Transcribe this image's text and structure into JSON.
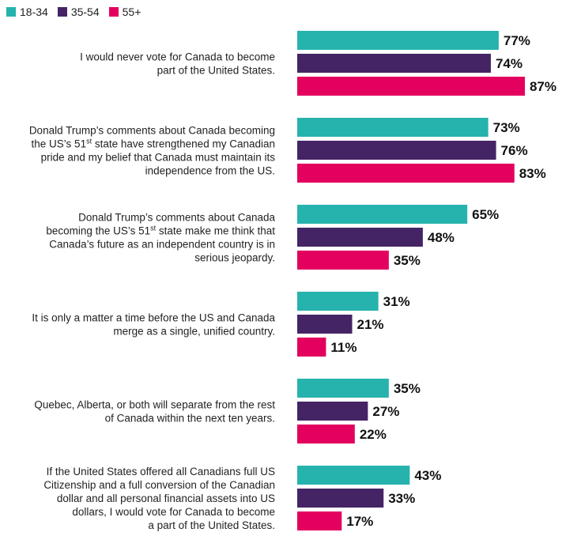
{
  "colors": {
    "18-34": "#26b3ad",
    "35-54": "#452465",
    "55+": "#e3005f"
  },
  "chart_data": {
    "type": "bar",
    "orientation": "horizontal",
    "value_suffix": "%",
    "xlim": [
      0,
      100
    ],
    "grid": false,
    "legend_position": "top-left",
    "series": [
      {
        "name": "18-34",
        "values": [
          77,
          73,
          65,
          31,
          35,
          43
        ]
      },
      {
        "name": "35-54",
        "values": [
          74,
          76,
          48,
          21,
          27,
          33
        ]
      },
      {
        "name": "55+",
        "values": [
          87,
          83,
          35,
          11,
          22,
          17
        ]
      }
    ],
    "categories": [
      {
        "lines": [
          [
            {
              "t": "I would never vote for Canada to become"
            }
          ],
          [
            {
              "t": "part of the United States."
            }
          ]
        ]
      },
      {
        "lines": [
          [
            {
              "t": "Donald Trump’s comments about Canada becoming"
            }
          ],
          [
            {
              "t": "the US’s 51"
            },
            {
              "t": "st",
              "sup": true
            },
            {
              "t": " state have strengthened my Canadian"
            }
          ],
          [
            {
              "t": "pride and my belief that Canada must maintain its"
            }
          ],
          [
            {
              "t": "independence from the US."
            }
          ]
        ]
      },
      {
        "lines": [
          [
            {
              "t": "Donald Trump’s comments about Canada"
            }
          ],
          [
            {
              "t": "becoming the US’s 51"
            },
            {
              "t": "st",
              "sup": true
            },
            {
              "t": " state make me think that"
            }
          ],
          [
            {
              "t": "Canada’s future as an independent country is in"
            }
          ],
          [
            {
              "t": "serious jeopardy."
            }
          ]
        ]
      },
      {
        "lines": [
          [
            {
              "t": "It is only a matter a time before the US and Canada"
            }
          ],
          [
            {
              "t": "merge as a single, unified country."
            }
          ]
        ]
      },
      {
        "lines": [
          [
            {
              "t": "Quebec, Alberta, or both will separate from the rest"
            }
          ],
          [
            {
              "t": "of Canada within the next ten years."
            }
          ]
        ]
      },
      {
        "lines": [
          [
            {
              "t": "If the United States offered all Canadians full US"
            }
          ],
          [
            {
              "t": "Citizenship and a full conversion of the Canadian"
            }
          ],
          [
            {
              "t": "dollar and all personal financial assets into US"
            }
          ],
          [
            {
              "t": "dollars, I would vote for Canada to become"
            }
          ],
          [
            {
              "t": "a part of the United States."
            }
          ]
        ]
      }
    ]
  }
}
